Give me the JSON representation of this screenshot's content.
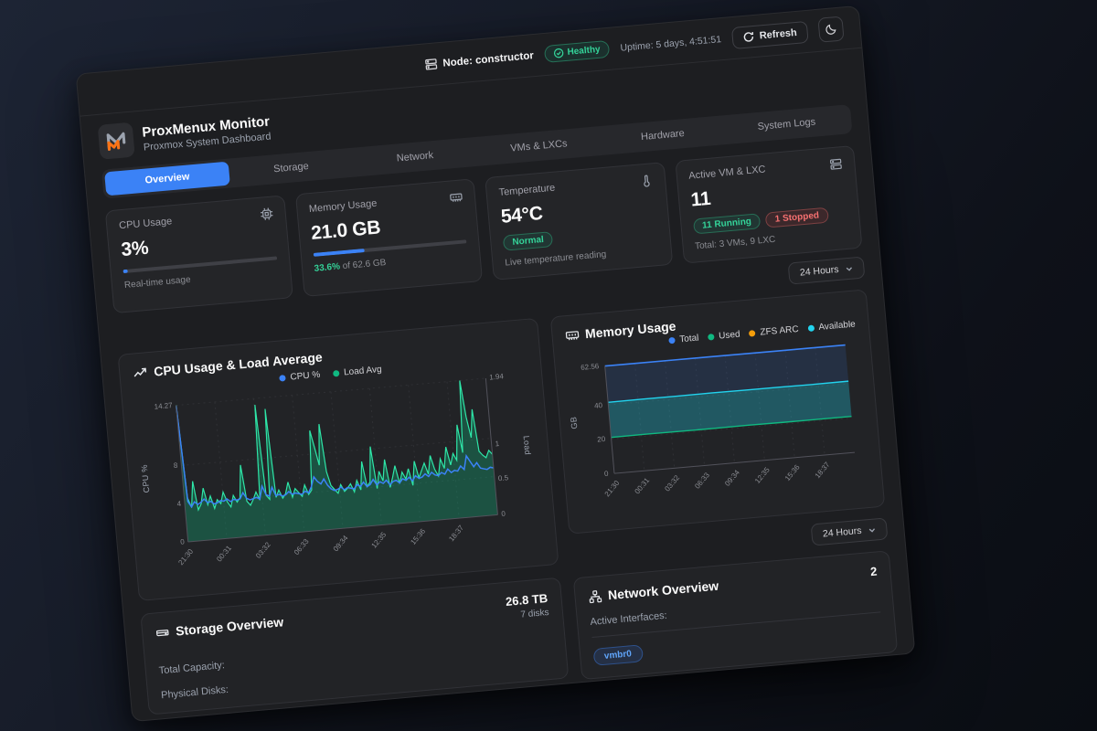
{
  "topbar": {
    "node_label": "Node: constructor",
    "health_label": "Healthy",
    "uptime": "Uptime: 5 days, 4:51:51",
    "refresh_label": "Refresh"
  },
  "header": {
    "title": "ProxMenux Monitor",
    "subtitle": "Proxmox System Dashboard",
    "logo_colors": {
      "gray": "#9ca3af",
      "orange": "#f97316"
    }
  },
  "tabs": [
    {
      "label": "Overview",
      "active": true
    },
    {
      "label": "Storage",
      "active": false
    },
    {
      "label": "Network",
      "active": false
    },
    {
      "label": "VMs & LXCs",
      "active": false
    },
    {
      "label": "Hardware",
      "active": false
    },
    {
      "label": "System Logs",
      "active": false
    }
  ],
  "stat_cards": {
    "cpu": {
      "label": "CPU Usage",
      "value": "3%",
      "percent": 3,
      "caption": "Real-time usage"
    },
    "memory": {
      "label": "Memory Usage",
      "value": "21.0 GB",
      "percent": 33.6,
      "caption_highlight": "33.6%",
      "caption_rest": " of 62.6 GB"
    },
    "temperature": {
      "label": "Temperature",
      "value": "54°C",
      "badge": "Normal",
      "caption": "Live temperature reading"
    },
    "vms": {
      "label": "Active VM & LXC",
      "value": "11",
      "running_badge": "11 Running",
      "stopped_badge": "1 Stopped",
      "caption": "Total: 3 VMs, 9 LXC"
    }
  },
  "time_range": {
    "label": "24 Hours"
  },
  "time_range2": {
    "label": "24 Hours"
  },
  "storage": {
    "title": "Storage Overview",
    "total": "26.8 TB",
    "disks": "7 disks",
    "rows": [
      "Total Capacity:",
      "Physical Disks:"
    ]
  },
  "network": {
    "title": "Network Overview",
    "count": "2",
    "active_interfaces_label": "Active Interfaces:",
    "interface_badge": "vmbr0"
  },
  "accent_colors": {
    "blue": "#3b82f6",
    "green": "#10b981",
    "orange": "#f59e0b",
    "cyan": "#22d3ee",
    "red": "#ef4444"
  },
  "chart_data": [
    {
      "type": "line",
      "title": "CPU Usage & Load Average",
      "ylabel_left": "CPU %",
      "ylabel_right": "Load",
      "yticks_left": [
        "14.27",
        "8",
        "4",
        "0"
      ],
      "yticks_right": [
        "1.94",
        "1",
        "0.5",
        "0"
      ],
      "ymax_left": 14.27,
      "ymax_right": 1.94,
      "x": [
        "21:30",
        "00:31",
        "03:32",
        "06:33",
        "09:34",
        "12:35",
        "15:36",
        "18:37"
      ],
      "legend": [
        {
          "label": "CPU %",
          "color": "#3b82f6"
        },
        {
          "label": "Load Avg",
          "color": "#10b981"
        }
      ],
      "grid": true,
      "series": [
        {
          "name": "CPU %",
          "axis": "left",
          "color": "#3b82f6",
          "fill": false,
          "values": [
            14.2,
            4.2,
            3.6,
            4.1,
            3.8,
            4.0,
            4.3,
            3.9,
            4.0,
            3.7,
            3.8,
            4.0,
            3.9,
            4.1,
            3.8,
            4.0,
            3.9,
            4.0,
            4.6,
            4.0,
            3.8,
            3.9,
            4.0,
            3.8,
            5.1,
            4.2,
            4.0,
            4.9,
            4.0,
            4.1,
            3.9,
            4.0,
            4.3,
            4.0,
            4.1,
            4.0,
            3.9,
            4.2,
            4.0,
            4.6,
            5.6,
            5.1,
            4.8,
            5.3,
            4.6,
            4.2,
            4.0,
            4.1,
            4.3,
            4.0,
            4.2,
            4.1,
            4.0,
            4.4,
            4.2,
            4.6,
            4.1,
            4.3,
            4.8,
            4.2,
            4.5,
            4.3,
            4.6,
            4.1,
            4.4,
            4.5,
            4.2,
            4.6,
            4.4,
            4.7,
            4.3,
            4.8,
            4.5,
            4.6,
            4.9,
            4.6,
            5.0,
            4.7,
            4.6,
            4.9,
            4.7,
            5.2,
            4.8,
            5.0,
            4.9,
            5.4,
            5.0,
            6.4,
            5.8,
            5.2,
            5.6,
            5.0,
            4.9,
            4.8,
            5.0,
            4.9
          ]
        },
        {
          "name": "Load Avg",
          "axis": "right",
          "color": "#10b981",
          "fill": true,
          "values": [
            1.94,
            0.62,
            0.48,
            0.85,
            0.44,
            0.52,
            0.74,
            0.5,
            0.62,
            0.44,
            0.56,
            0.5,
            0.66,
            0.52,
            0.44,
            0.6,
            0.5,
            0.56,
            1.02,
            0.5,
            0.44,
            0.52,
            0.62,
            0.5,
            1.85,
            0.56,
            0.5,
            1.78,
            0.52,
            0.62,
            0.5,
            0.56,
            0.72,
            0.5,
            0.62,
            0.56,
            0.5,
            0.66,
            0.52,
            0.58,
            1.42,
            1.18,
            0.92,
            1.5,
            0.82,
            0.62,
            0.56,
            0.5,
            0.62,
            0.52,
            0.56,
            0.62,
            0.5,
            0.66,
            0.52,
            0.92,
            0.56,
            0.62,
            1.12,
            0.52,
            0.76,
            0.62,
            0.92,
            0.52,
            0.66,
            0.82,
            0.56,
            0.72,
            0.62,
            0.76,
            0.52,
            0.86,
            0.62,
            0.72,
            0.82,
            0.66,
            0.92,
            0.72,
            0.62,
            0.86,
            0.72,
            1.02,
            0.76,
            0.92,
            0.82,
            1.32,
            0.92,
            1.94,
            1.42,
            1.12,
            1.52,
            0.92,
            0.86,
            0.82,
            0.92,
            0.86
          ]
        }
      ]
    },
    {
      "type": "area",
      "title": "Memory Usage",
      "ylabel": "GB",
      "yticks": [
        "62.56",
        "40",
        "20",
        "0"
      ],
      "ymax": 62.56,
      "x": [
        "21:30",
        "00:31",
        "03:32",
        "06:33",
        "09:34",
        "12:35",
        "15:36",
        "18:37"
      ],
      "legend": [
        {
          "label": "Total",
          "color": "#3b82f6"
        },
        {
          "label": "Used",
          "color": "#10b981"
        },
        {
          "label": "ZFS ARC",
          "color": "#f59e0b"
        },
        {
          "label": "Available",
          "color": "#22d3ee"
        }
      ],
      "grid": true,
      "series": [
        {
          "name": "Total",
          "color": "#3b82f6",
          "values": [
            62.56,
            62.56,
            62.56,
            62.56,
            62.56,
            62.56,
            62.56,
            62.56
          ]
        },
        {
          "name": "Available",
          "color": "#22d3ee",
          "values": [
            41.4,
            41.5,
            41.5,
            41.6,
            41.5,
            41.5,
            41.4,
            41.5
          ]
        },
        {
          "name": "Used",
          "color": "#10b981",
          "values": [
            21.0,
            21.1,
            21.0,
            21.0,
            21.1,
            21.0,
            21.0,
            21.0
          ]
        }
      ]
    }
  ]
}
